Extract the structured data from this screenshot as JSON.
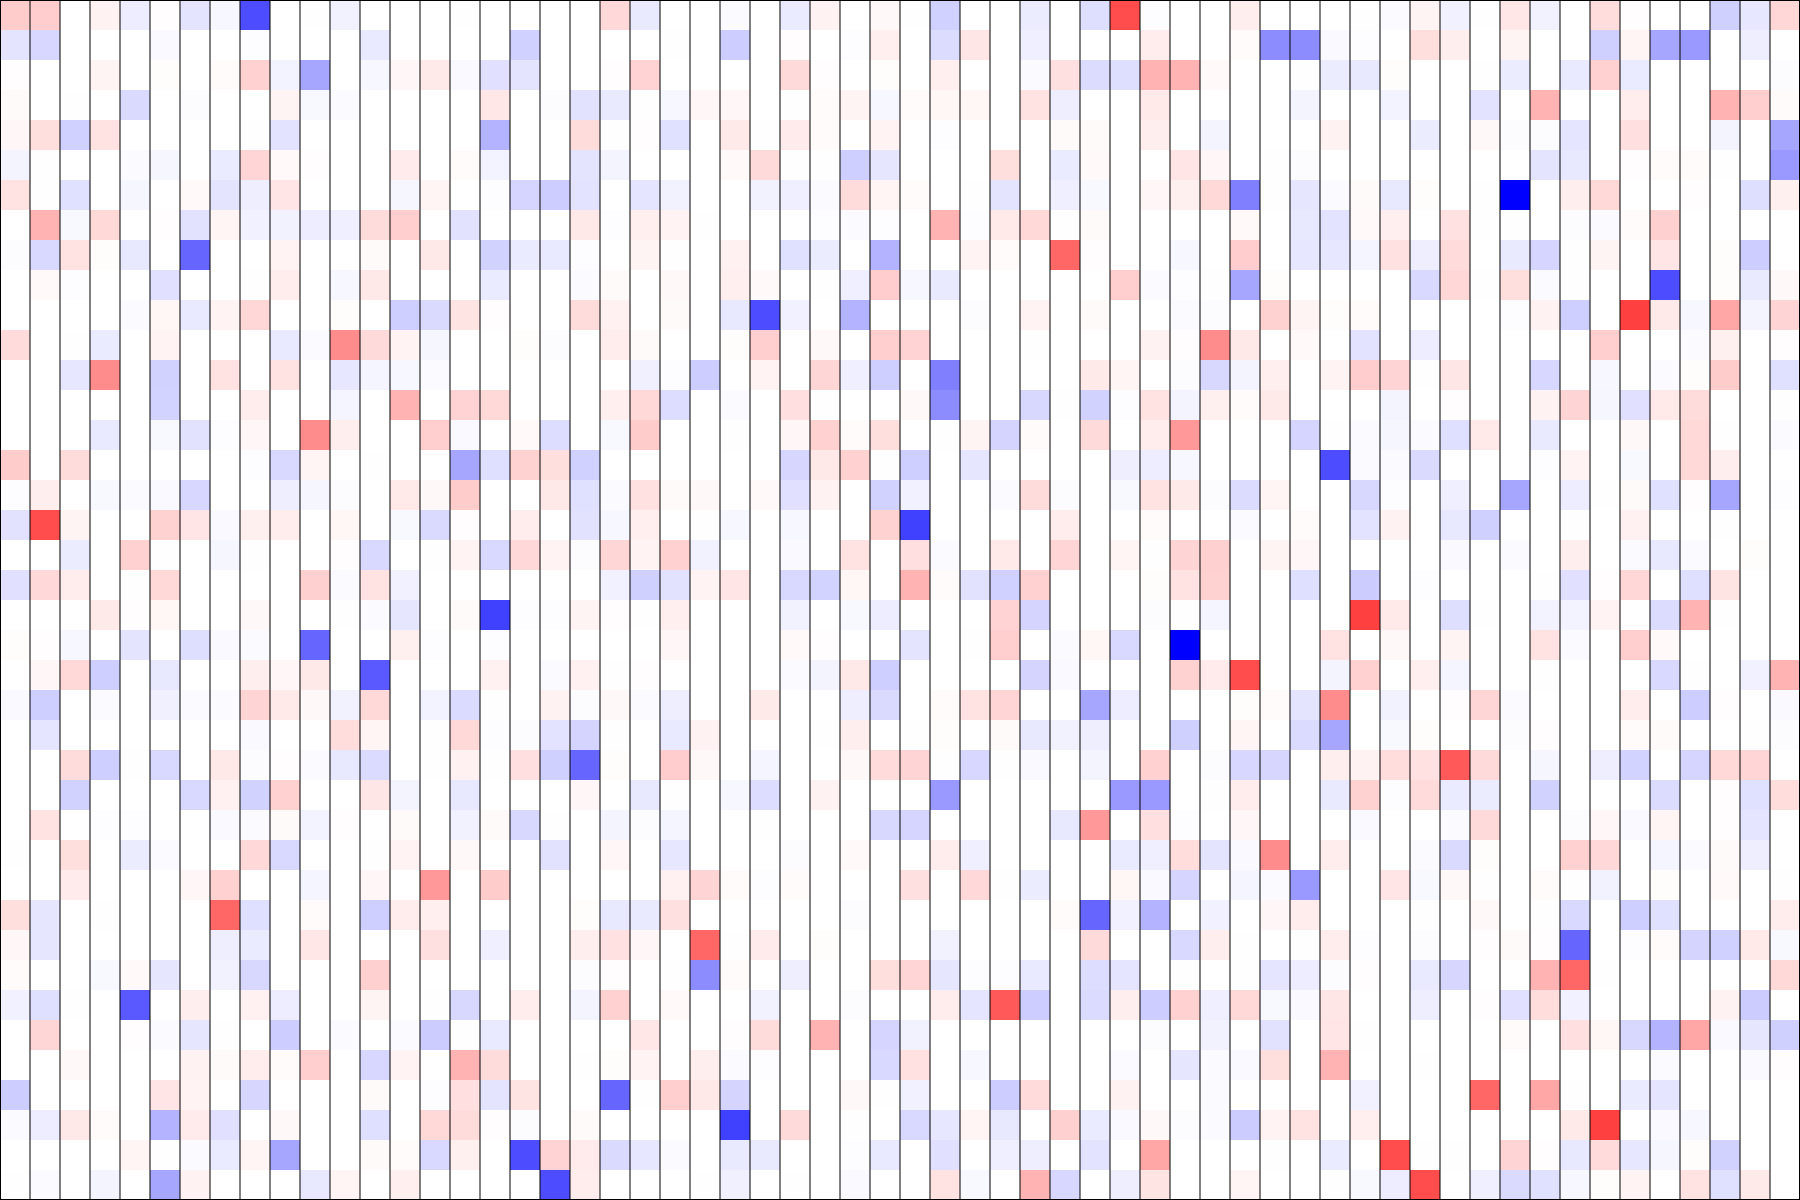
{
  "chart_data": {
    "type": "heatmap",
    "title": "",
    "xlabel": "",
    "ylabel": "",
    "rows": 40,
    "cols": 60,
    "value_range": [
      -1,
      1
    ],
    "colormap": {
      "negative": "#0000ff",
      "zero": "#ffffff",
      "positive": "#ff0000"
    },
    "grid_line_color": "#000000",
    "vertical_grid_lines": true,
    "horizontal_grid_lines": false,
    "background_fraction_nonzero": 0.62,
    "strong_cells": [
      {
        "row": 0,
        "col": 8,
        "value": -0.7
      },
      {
        "row": 0,
        "col": 37,
        "value": 0.7
      },
      {
        "row": 1,
        "col": 42,
        "value": -0.45
      },
      {
        "row": 1,
        "col": 43,
        "value": -0.45
      },
      {
        "row": 1,
        "col": 55,
        "value": -0.35
      },
      {
        "row": 1,
        "col": 56,
        "value": -0.4
      },
      {
        "row": 2,
        "col": 10,
        "value": -0.35
      },
      {
        "row": 2,
        "col": 38,
        "value": 0.3
      },
      {
        "row": 2,
        "col": 39,
        "value": 0.3
      },
      {
        "row": 3,
        "col": 51,
        "value": 0.3
      },
      {
        "row": 3,
        "col": 57,
        "value": 0.3
      },
      {
        "row": 4,
        "col": 16,
        "value": -0.3
      },
      {
        "row": 4,
        "col": 59,
        "value": -0.35
      },
      {
        "row": 5,
        "col": 59,
        "value": -0.4
      },
      {
        "row": 6,
        "col": 41,
        "value": -0.5
      },
      {
        "row": 6,
        "col": 50,
        "value": -1.0
      },
      {
        "row": 7,
        "col": 1,
        "value": 0.3
      },
      {
        "row": 7,
        "col": 31,
        "value": 0.3
      },
      {
        "row": 8,
        "col": 6,
        "value": -0.6
      },
      {
        "row": 8,
        "col": 35,
        "value": 0.6
      },
      {
        "row": 8,
        "col": 29,
        "value": -0.3
      },
      {
        "row": 9,
        "col": 55,
        "value": -0.7
      },
      {
        "row": 9,
        "col": 41,
        "value": -0.35
      },
      {
        "row": 10,
        "col": 25,
        "value": -0.7
      },
      {
        "row": 10,
        "col": 28,
        "value": -0.3
      },
      {
        "row": 10,
        "col": 54,
        "value": 0.75
      },
      {
        "row": 10,
        "col": 57,
        "value": 0.35
      },
      {
        "row": 11,
        "col": 11,
        "value": 0.45
      },
      {
        "row": 11,
        "col": 40,
        "value": 0.45
      },
      {
        "row": 12,
        "col": 3,
        "value": 0.45
      },
      {
        "row": 12,
        "col": 31,
        "value": -0.5
      },
      {
        "row": 13,
        "col": 31,
        "value": -0.45
      },
      {
        "row": 13,
        "col": 13,
        "value": 0.3
      },
      {
        "row": 14,
        "col": 10,
        "value": 0.45
      },
      {
        "row": 14,
        "col": 39,
        "value": 0.4
      },
      {
        "row": 15,
        "col": 44,
        "value": -0.7
      },
      {
        "row": 15,
        "col": 15,
        "value": -0.35
      },
      {
        "row": 16,
        "col": 50,
        "value": -0.35
      },
      {
        "row": 16,
        "col": 57,
        "value": -0.35
      },
      {
        "row": 17,
        "col": 1,
        "value": 0.7
      },
      {
        "row": 17,
        "col": 30,
        "value": -0.75
      },
      {
        "row": 19,
        "col": 30,
        "value": 0.3
      },
      {
        "row": 20,
        "col": 16,
        "value": -0.75
      },
      {
        "row": 20,
        "col": 45,
        "value": 0.75
      },
      {
        "row": 20,
        "col": 56,
        "value": 0.3
      },
      {
        "row": 21,
        "col": 10,
        "value": -0.6
      },
      {
        "row": 21,
        "col": 39,
        "value": -1.0
      },
      {
        "row": 22,
        "col": 12,
        "value": -0.65
      },
      {
        "row": 22,
        "col": 41,
        "value": 0.7
      },
      {
        "row": 22,
        "col": 59,
        "value": 0.3
      },
      {
        "row": 23,
        "col": 44,
        "value": 0.45
      },
      {
        "row": 23,
        "col": 36,
        "value": -0.35
      },
      {
        "row": 24,
        "col": 44,
        "value": -0.35
      },
      {
        "row": 25,
        "col": 19,
        "value": -0.6
      },
      {
        "row": 25,
        "col": 48,
        "value": 0.65
      },
      {
        "row": 26,
        "col": 31,
        "value": -0.4
      },
      {
        "row": 26,
        "col": 37,
        "value": -0.4
      },
      {
        "row": 26,
        "col": 38,
        "value": -0.4
      },
      {
        "row": 27,
        "col": 36,
        "value": 0.4
      },
      {
        "row": 28,
        "col": 42,
        "value": 0.45
      },
      {
        "row": 29,
        "col": 14,
        "value": 0.4
      },
      {
        "row": 29,
        "col": 43,
        "value": -0.4
      },
      {
        "row": 30,
        "col": 7,
        "value": 0.6
      },
      {
        "row": 30,
        "col": 36,
        "value": -0.6
      },
      {
        "row": 30,
        "col": 38,
        "value": -0.3
      },
      {
        "row": 31,
        "col": 23,
        "value": 0.6
      },
      {
        "row": 31,
        "col": 52,
        "value": -0.6
      },
      {
        "row": 32,
        "col": 23,
        "value": -0.45
      },
      {
        "row": 32,
        "col": 52,
        "value": 0.6
      },
      {
        "row": 32,
        "col": 51,
        "value": 0.3
      },
      {
        "row": 33,
        "col": 4,
        "value": -0.65
      },
      {
        "row": 33,
        "col": 33,
        "value": 0.65
      },
      {
        "row": 34,
        "col": 27,
        "value": 0.3
      },
      {
        "row": 34,
        "col": 56,
        "value": 0.35
      },
      {
        "row": 34,
        "col": 55,
        "value": -0.3
      },
      {
        "row": 35,
        "col": 15,
        "value": 0.3
      },
      {
        "row": 35,
        "col": 44,
        "value": 0.3
      },
      {
        "row": 36,
        "col": 20,
        "value": -0.6
      },
      {
        "row": 36,
        "col": 49,
        "value": 0.6
      },
      {
        "row": 36,
        "col": 51,
        "value": 0.35
      },
      {
        "row": 37,
        "col": 24,
        "value": -0.75
      },
      {
        "row": 37,
        "col": 53,
        "value": 0.75
      },
      {
        "row": 37,
        "col": 5,
        "value": -0.3
      },
      {
        "row": 38,
        "col": 17,
        "value": -0.7
      },
      {
        "row": 38,
        "col": 46,
        "value": 0.7
      },
      {
        "row": 38,
        "col": 9,
        "value": -0.35
      },
      {
        "row": 38,
        "col": 38,
        "value": 0.35
      },
      {
        "row": 39,
        "col": 18,
        "value": -0.7
      },
      {
        "row": 39,
        "col": 47,
        "value": 0.7
      },
      {
        "row": 39,
        "col": 5,
        "value": -0.35
      },
      {
        "row": 39,
        "col": 34,
        "value": 0.3
      }
    ]
  }
}
